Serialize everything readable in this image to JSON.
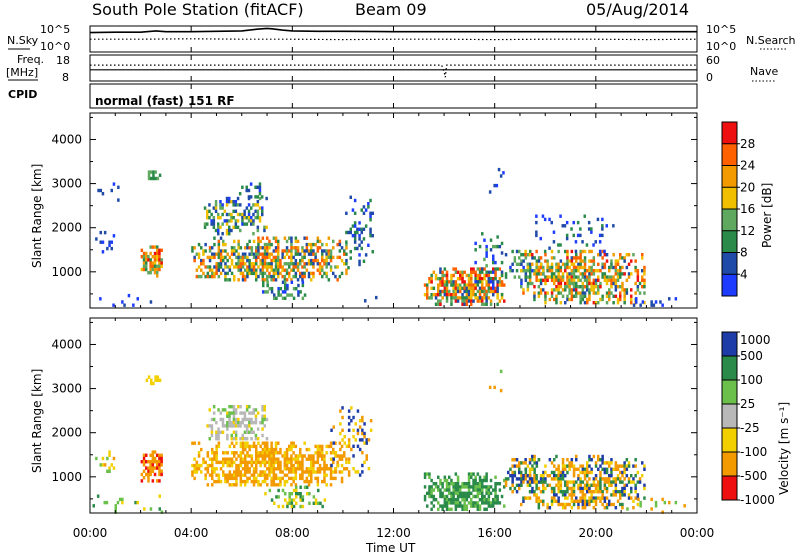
{
  "header": {
    "title": "South Pole Station (fitACF)",
    "beam": "Beam 09",
    "date": "05/Aug/2014"
  },
  "top_panels": {
    "nsky_label": "N.Sky",
    "nsearch_label": "N.Search",
    "nsky_ticks": [
      "10^5",
      "10^0"
    ],
    "freq_label": "Freq.",
    "freq_unit": "[MHz]",
    "freq_ticks": [
      "18",
      "8"
    ],
    "nave_label": "Nave",
    "nave_ticks": [
      "60",
      "0"
    ],
    "cpid_label": "CPID",
    "cpid_text": "normal (fast) 151 RF",
    "series": {
      "nsky": {
        "t": [
          0,
          1,
          2,
          2.6,
          3,
          4,
          5,
          6,
          6.6,
          7,
          7.2,
          7.6,
          8,
          9,
          10,
          12,
          14,
          16,
          18,
          20,
          22,
          24
        ],
        "log10": [
          4.2,
          4.3,
          4.3,
          4.6,
          4.4,
          4.4,
          4.5,
          4.6,
          5.0,
          5.2,
          5.1,
          4.8,
          4.6,
          4.5,
          4.5,
          4.4,
          4.4,
          4.4,
          4.4,
          4.4,
          4.4,
          4.4
        ]
      },
      "nsearch": {
        "t": [
          0,
          2,
          4,
          6,
          8,
          10,
          12,
          14,
          16,
          18,
          20,
          22,
          24
        ],
        "log10": [
          2.6,
          2.6,
          2.7,
          2.6,
          2.6,
          2.5,
          2.6,
          2.6,
          2.5,
          2.6,
          2.6,
          2.5,
          2.6
        ]
      },
      "freq": {
        "t": [
          0,
          24
        ],
        "mhz": [
          12.2,
          12.2
        ]
      },
      "nave": {
        "t": [
          0,
          13.9,
          14.0,
          14.05,
          14.1,
          24
        ],
        "count": [
          38,
          38,
          20,
          5,
          38,
          38
        ]
      }
    }
  },
  "chart_data": [
    {
      "type": "heatmap",
      "name": "power",
      "xlabel": "Time UT",
      "ylabel": "Slant Range [km]",
      "xlim": [
        0,
        24
      ],
      "x_ticks": [
        "00:00",
        "04:00",
        "08:00",
        "12:00",
        "16:00",
        "20:00",
        "00:00"
      ],
      "x_tick_hours": [
        0,
        4,
        8,
        12,
        16,
        20,
        24
      ],
      "ylim": [
        180,
        4600
      ],
      "y_ticks": [
        1000,
        2000,
        3000,
        4000
      ],
      "colorbar": {
        "label": "Power [dB]",
        "ticks": [
          "4",
          "8",
          "12",
          "16",
          "20",
          "24",
          "28"
        ],
        "range": [
          0,
          32
        ],
        "bands": [
          {
            "from": 0,
            "to": 4,
            "color": "#1e3cff"
          },
          {
            "from": 4,
            "to": 8,
            "color": "#1f4aa8"
          },
          {
            "from": 8,
            "to": 12,
            "color": "#2a8a4a"
          },
          {
            "from": 12,
            "to": 16,
            "color": "#5fa860"
          },
          {
            "from": 16,
            "to": 20,
            "color": "#f0c000"
          },
          {
            "from": 20,
            "to": 24,
            "color": "#f39a00"
          },
          {
            "from": 24,
            "to": 28,
            "color": "#ff6000"
          },
          {
            "from": 28,
            "to": 32,
            "color": "#ee1010"
          }
        ]
      },
      "regions": [
        {
          "t0": 0.1,
          "t1": 2.9,
          "r0": 200,
          "r1": 500,
          "density": 0.12,
          "vmin": 0,
          "vmax": 10
        },
        {
          "t0": 0.2,
          "t1": 1.0,
          "r0": 1400,
          "r1": 2000,
          "density": 0.3,
          "vmin": 2,
          "vmax": 8
        },
        {
          "t0": 0.2,
          "t1": 1.2,
          "r0": 2500,
          "r1": 3100,
          "density": 0.12,
          "vmin": 2,
          "vmax": 8
        },
        {
          "t0": 2.0,
          "t1": 2.9,
          "r0": 900,
          "r1": 1600,
          "density": 0.85,
          "vmin": 8,
          "vmax": 30
        },
        {
          "t0": 2.2,
          "t1": 2.8,
          "r0": 3050,
          "r1": 3300,
          "density": 0.7,
          "vmin": 8,
          "vmax": 16
        },
        {
          "t0": 4.0,
          "t1": 10.2,
          "r0": 750,
          "r1": 1800,
          "density": 0.75,
          "vmin": 4,
          "vmax": 28
        },
        {
          "t0": 4.5,
          "t1": 7.0,
          "r0": 1800,
          "r1": 2700,
          "density": 0.6,
          "vmin": 3,
          "vmax": 20
        },
        {
          "t0": 5.8,
          "t1": 7.0,
          "r0": 2700,
          "r1": 3100,
          "density": 0.3,
          "vmin": 2,
          "vmax": 12
        },
        {
          "t0": 6.8,
          "t1": 8.5,
          "r0": 400,
          "r1": 800,
          "density": 0.5,
          "vmin": 2,
          "vmax": 16
        },
        {
          "t0": 10.0,
          "t1": 11.2,
          "r0": 1000,
          "r1": 2800,
          "density": 0.3,
          "vmin": 2,
          "vmax": 12
        },
        {
          "t0": 10.4,
          "t1": 11.6,
          "r0": 220,
          "r1": 600,
          "density": 0.1,
          "vmin": 2,
          "vmax": 8
        },
        {
          "t0": 13.2,
          "t1": 16.4,
          "r0": 250,
          "r1": 1100,
          "density": 0.85,
          "vmin": 6,
          "vmax": 32
        },
        {
          "t0": 15.2,
          "t1": 16.3,
          "r0": 400,
          "r1": 1900,
          "density": 0.3,
          "vmin": 2,
          "vmax": 14
        },
        {
          "t0": 16.4,
          "t1": 18.0,
          "r0": 700,
          "r1": 1500,
          "density": 0.5,
          "vmin": 2,
          "vmax": 16
        },
        {
          "t0": 17.0,
          "t1": 22.0,
          "r0": 250,
          "r1": 1500,
          "density": 0.7,
          "vmin": 6,
          "vmax": 30
        },
        {
          "t0": 17.6,
          "t1": 20.8,
          "r0": 1400,
          "r1": 2300,
          "density": 0.25,
          "vmin": 2,
          "vmax": 10
        },
        {
          "t0": 21.2,
          "t1": 23.8,
          "r0": 200,
          "r1": 500,
          "density": 0.15,
          "vmin": 0,
          "vmax": 8
        },
        {
          "t0": 15.6,
          "t1": 16.6,
          "r0": 2800,
          "r1": 3500,
          "density": 0.06,
          "vmin": 2,
          "vmax": 8
        }
      ]
    },
    {
      "type": "heatmap",
      "name": "velocity",
      "xlabel": "Time UT",
      "ylabel": "Slant Range [km]",
      "xlim": [
        0,
        24
      ],
      "ylim": [
        180,
        4600
      ],
      "y_ticks": [
        1000,
        2000,
        3000,
        4000
      ],
      "colorbar": {
        "label": "Velocity [m s⁻¹]",
        "ticks": [
          "1000",
          "500",
          "100",
          "25",
          "-25",
          "-100",
          "-500",
          "-1000"
        ],
        "bands": [
          {
            "from": 500,
            "to": 1000,
            "color": "#1e3ca8"
          },
          {
            "from": 100,
            "to": 500,
            "color": "#2a8a4a"
          },
          {
            "from": 25,
            "to": 100,
            "color": "#6ac04a"
          },
          {
            "from": -25,
            "to": 25,
            "color": "#b8b8b8"
          },
          {
            "from": -100,
            "to": -25,
            "color": "#f2d000"
          },
          {
            "from": -500,
            "to": -100,
            "color": "#f39a00"
          },
          {
            "from": -1000,
            "to": -500,
            "color": "#ee1010"
          }
        ]
      },
      "regions": [
        {
          "t0": 0.1,
          "t1": 2.9,
          "r0": 200,
          "r1": 600,
          "density": 0.2,
          "vals": [
            50,
            300,
            -50
          ]
        },
        {
          "t0": 0.2,
          "t1": 1.0,
          "r0": 1100,
          "r1": 1600,
          "density": 0.4,
          "vals": [
            -60,
            60,
            -200
          ]
        },
        {
          "t0": 2.0,
          "t1": 2.9,
          "r0": 900,
          "r1": 1600,
          "density": 0.85,
          "vals": [
            -300,
            -150,
            -600
          ]
        },
        {
          "t0": 2.2,
          "t1": 2.8,
          "r0": 3050,
          "r1": 3300,
          "density": 0.7,
          "vals": [
            -60,
            -40
          ]
        },
        {
          "t0": 4.0,
          "t1": 10.2,
          "r0": 750,
          "r1": 1800,
          "density": 0.8,
          "vals": [
            -300,
            -200,
            -150,
            -60
          ]
        },
        {
          "t0": 4.6,
          "t1": 7.0,
          "r0": 1800,
          "r1": 2700,
          "density": 0.6,
          "vals": [
            0,
            10,
            -10,
            60,
            -60
          ]
        },
        {
          "t0": 6.8,
          "t1": 9.5,
          "r0": 300,
          "r1": 800,
          "density": 0.4,
          "vals": [
            300,
            60,
            -60
          ]
        },
        {
          "t0": 9.5,
          "t1": 11.2,
          "r0": 1000,
          "r1": 2600,
          "density": 0.3,
          "vals": [
            -200,
            700,
            -60
          ]
        },
        {
          "t0": 13.2,
          "t1": 16.4,
          "r0": 220,
          "r1": 1100,
          "density": 0.85,
          "vals": [
            300,
            200,
            60
          ]
        },
        {
          "t0": 16.4,
          "t1": 18.0,
          "r0": 600,
          "r1": 1500,
          "density": 0.5,
          "vals": [
            700,
            -200,
            200
          ]
        },
        {
          "t0": 17.0,
          "t1": 22.0,
          "r0": 250,
          "r1": 1500,
          "density": 0.7,
          "vals": [
            -200,
            700,
            -300,
            200,
            -60
          ]
        },
        {
          "t0": 21.2,
          "t1": 23.8,
          "r0": 200,
          "r1": 600,
          "density": 0.15,
          "vals": [
            -200,
            60
          ]
        },
        {
          "t0": 15.6,
          "t1": 16.6,
          "r0": 2800,
          "r1": 3500,
          "density": 0.06,
          "vals": [
            -200,
            60
          ]
        }
      ]
    }
  ]
}
